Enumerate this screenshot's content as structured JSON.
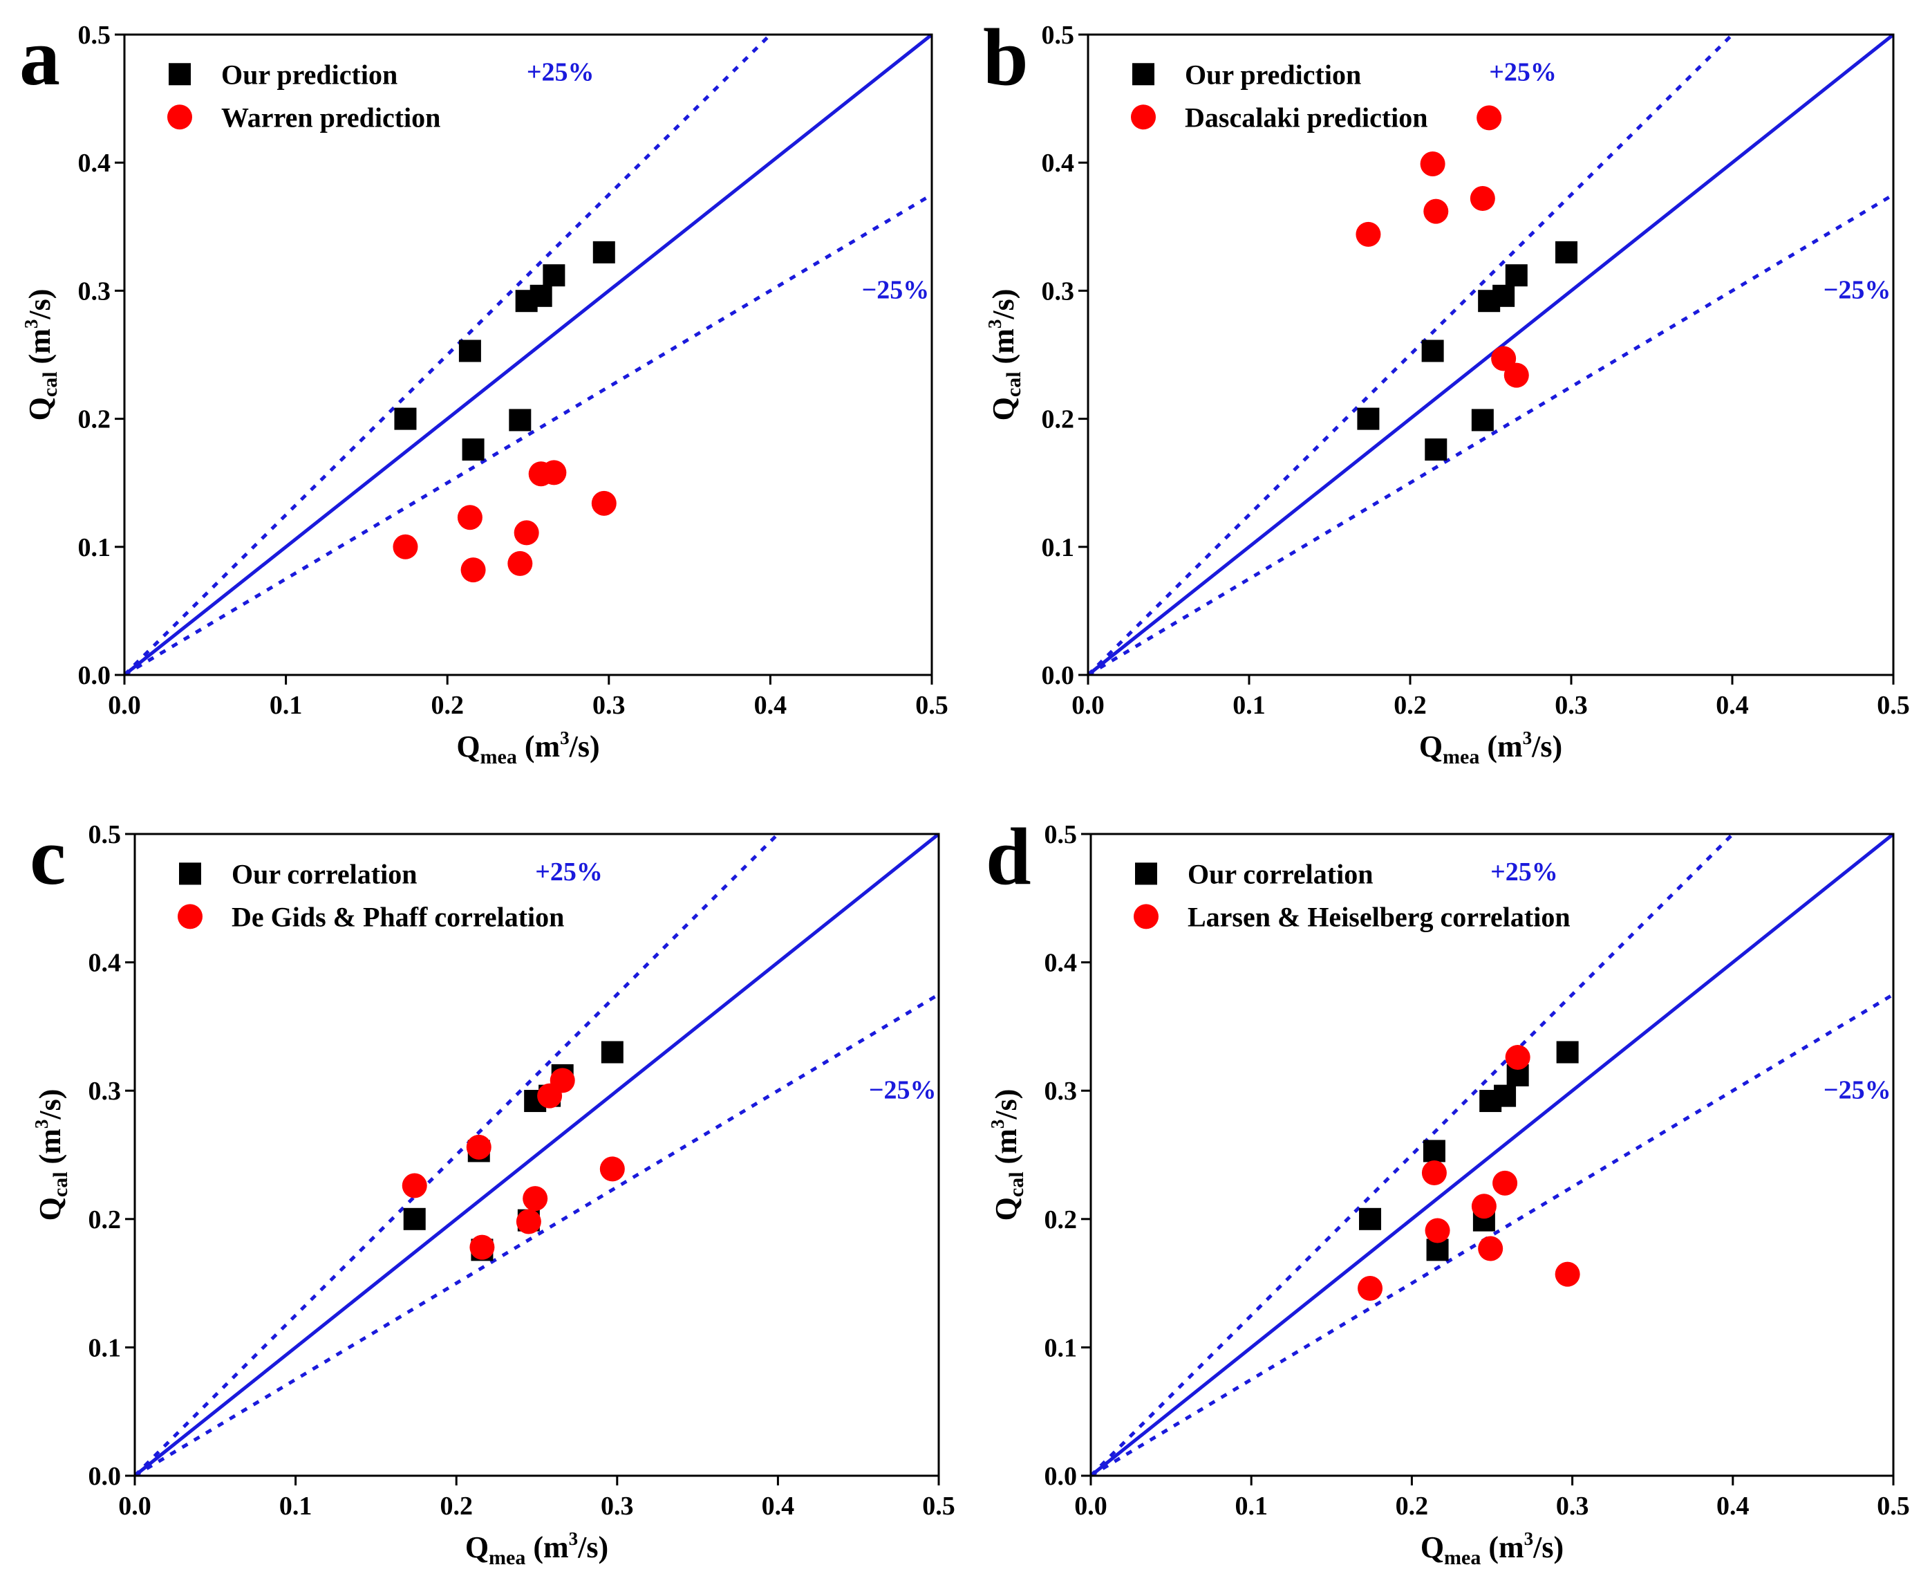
{
  "colors": {
    "parity": "#1a1adc",
    "band": "#1a1adc",
    "series_ours": "#000000",
    "series_other": "#ff0000",
    "axis": "#000000"
  },
  "chart_data": [
    {
      "type": "scatter",
      "panel": "a",
      "xlabel": {
        "main": "Q",
        "sub": "mea",
        "unit_pre": " (m",
        "unit_sup": "3",
        "unit_post": "/s)"
      },
      "ylabel": {
        "main": "Q",
        "sub": "cal",
        "unit_pre": " (m",
        "unit_sup": "3",
        "unit_post": "/s)"
      },
      "xlim": [
        0.0,
        0.5
      ],
      "ylim": [
        0.0,
        0.5
      ],
      "xticks": [
        "0.0",
        "0.1",
        "0.2",
        "0.3",
        "0.4",
        "0.5"
      ],
      "yticks": [
        "0.0",
        "0.1",
        "0.2",
        "0.3",
        "0.4",
        "0.5"
      ],
      "parity_line": "y = x",
      "bands": [
        {
          "label": "+25%",
          "slope": 1.25
        },
        {
          "label": "−25%",
          "slope": 0.75
        }
      ],
      "legend_position": "top-left",
      "series": [
        {
          "name": "Our prediction",
          "marker": "square",
          "color": "#000000",
          "points": [
            [
              0.174,
              0.2
            ],
            [
              0.216,
              0.176
            ],
            [
              0.214,
              0.253
            ],
            [
              0.245,
              0.199
            ],
            [
              0.249,
              0.292
            ],
            [
              0.258,
              0.296
            ],
            [
              0.266,
              0.312
            ],
            [
              0.297,
              0.33
            ]
          ]
        },
        {
          "name": "Warren prediction",
          "marker": "circle",
          "color": "#ff0000",
          "points": [
            [
              0.174,
              0.1
            ],
            [
              0.216,
              0.082
            ],
            [
              0.214,
              0.123
            ],
            [
              0.245,
              0.087
            ],
            [
              0.249,
              0.111
            ],
            [
              0.258,
              0.157
            ],
            [
              0.266,
              0.158
            ],
            [
              0.297,
              0.134
            ]
          ]
        }
      ]
    },
    {
      "type": "scatter",
      "panel": "b",
      "xlabel": {
        "main": "Q",
        "sub": "mea",
        "unit_pre": " (m",
        "unit_sup": "3",
        "unit_post": "/s)"
      },
      "ylabel": {
        "main": "Q",
        "sub": "cal",
        "unit_pre": " (m",
        "unit_sup": "3",
        "unit_post": "/s)"
      },
      "xlim": [
        0.0,
        0.5
      ],
      "ylim": [
        0.0,
        0.5
      ],
      "xticks": [
        "0.0",
        "0.1",
        "0.2",
        "0.3",
        "0.4",
        "0.5"
      ],
      "yticks": [
        "0.0",
        "0.1",
        "0.2",
        "0.3",
        "0.4",
        "0.5"
      ],
      "parity_line": "y = x",
      "bands": [
        {
          "label": "+25%",
          "slope": 1.25
        },
        {
          "label": "−25%",
          "slope": 0.75
        }
      ],
      "legend_position": "top-left",
      "series": [
        {
          "name": "Our prediction",
          "marker": "square",
          "color": "#000000",
          "points": [
            [
              0.174,
              0.2
            ],
            [
              0.216,
              0.176
            ],
            [
              0.214,
              0.253
            ],
            [
              0.245,
              0.199
            ],
            [
              0.249,
              0.292
            ],
            [
              0.258,
              0.296
            ],
            [
              0.266,
              0.312
            ],
            [
              0.297,
              0.33
            ]
          ]
        },
        {
          "name": "Dascalaki prediction",
          "marker": "circle",
          "color": "#ff0000",
          "points": [
            [
              0.174,
              0.344
            ],
            [
              0.216,
              0.362
            ],
            [
              0.214,
              0.399
            ],
            [
              0.245,
              0.372
            ],
            [
              0.249,
              0.435
            ],
            [
              0.258,
              0.247
            ],
            [
              0.266,
              0.234
            ]
          ]
        }
      ]
    },
    {
      "type": "scatter",
      "panel": "c",
      "xlabel": {
        "main": "Q",
        "sub": "mea",
        "unit_pre": " (m",
        "unit_sup": "3",
        "unit_post": "/s)"
      },
      "ylabel": {
        "main": "Q",
        "sub": "cal",
        "unit_pre": " (m",
        "unit_sup": "3",
        "unit_post": "/s)"
      },
      "xlim": [
        0.0,
        0.5
      ],
      "ylim": [
        0.0,
        0.5
      ],
      "xticks": [
        "0.0",
        "0.1",
        "0.2",
        "0.3",
        "0.4",
        "0.5"
      ],
      "yticks": [
        "0.0",
        "0.1",
        "0.2",
        "0.3",
        "0.4",
        "0.5"
      ],
      "parity_line": "y = x",
      "bands": [
        {
          "label": "+25%",
          "slope": 1.25
        },
        {
          "label": "−25%",
          "slope": 0.75
        }
      ],
      "legend_position": "top-left",
      "series": [
        {
          "name": "Our correlation",
          "marker": "square",
          "color": "#000000",
          "points": [
            [
              0.174,
              0.2
            ],
            [
              0.216,
              0.176
            ],
            [
              0.214,
              0.253
            ],
            [
              0.245,
              0.199
            ],
            [
              0.249,
              0.292
            ],
            [
              0.258,
              0.296
            ],
            [
              0.266,
              0.312
            ],
            [
              0.297,
              0.33
            ]
          ]
        },
        {
          "name": "De Gids & Phaff correlation",
          "marker": "circle",
          "color": "#ff0000",
          "points": [
            [
              0.174,
              0.226
            ],
            [
              0.216,
              0.178
            ],
            [
              0.214,
              0.256
            ],
            [
              0.245,
              0.198
            ],
            [
              0.249,
              0.216
            ],
            [
              0.258,
              0.296
            ],
            [
              0.266,
              0.308
            ],
            [
              0.297,
              0.239
            ]
          ]
        }
      ]
    },
    {
      "type": "scatter",
      "panel": "d",
      "xlabel": {
        "main": "Q",
        "sub": "mea",
        "unit_pre": " (m",
        "unit_sup": "3",
        "unit_post": "/s)"
      },
      "ylabel": {
        "main": "Q",
        "sub": "cal",
        "unit_pre": " (m",
        "unit_sup": "3",
        "unit_post": "/s)"
      },
      "xlim": [
        0.0,
        0.5
      ],
      "ylim": [
        0.0,
        0.5
      ],
      "xticks": [
        "0.0",
        "0.1",
        "0.2",
        "0.3",
        "0.4",
        "0.5"
      ],
      "yticks": [
        "0.0",
        "0.1",
        "0.2",
        "0.3",
        "0.4",
        "0.5"
      ],
      "parity_line": "y = x",
      "bands": [
        {
          "label": "+25%",
          "slope": 1.25
        },
        {
          "label": "−25%",
          "slope": 0.75
        }
      ],
      "legend_position": "top-left",
      "series": [
        {
          "name": "Our correlation",
          "marker": "square",
          "color": "#000000",
          "points": [
            [
              0.174,
              0.2
            ],
            [
              0.216,
              0.176
            ],
            [
              0.214,
              0.253
            ],
            [
              0.245,
              0.199
            ],
            [
              0.249,
              0.292
            ],
            [
              0.258,
              0.296
            ],
            [
              0.266,
              0.312
            ],
            [
              0.297,
              0.33
            ]
          ]
        },
        {
          "name": "Larsen & Heiselberg correlation",
          "marker": "circle",
          "color": "#ff0000",
          "points": [
            [
              0.174,
              0.146
            ],
            [
              0.216,
              0.191
            ],
            [
              0.214,
              0.236
            ],
            [
              0.245,
              0.21
            ],
            [
              0.249,
              0.177
            ],
            [
              0.258,
              0.228
            ],
            [
              0.266,
              0.326
            ],
            [
              0.297,
              0.157
            ]
          ]
        }
      ]
    }
  ]
}
